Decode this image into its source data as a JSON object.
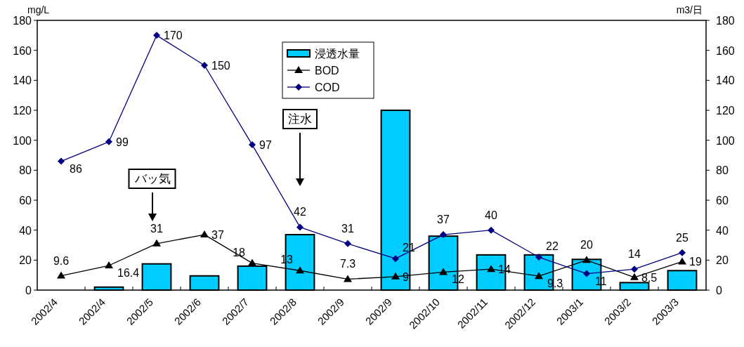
{
  "chart_data": {
    "type": "bar",
    "ylabel": "mg/L",
    "y2label": "m3/日",
    "categories": [
      "2002/4",
      "2002/4",
      "2002/5",
      "2002/6",
      "2002/7",
      "2002/8",
      "2002/9",
      "2002/9",
      "2002/10",
      "2002/11",
      "2002/12",
      "2003/1",
      "2003/2",
      "2003/3"
    ],
    "series": [
      {
        "name": "浸透水量",
        "color": "#00ccff",
        "values": [
          null,
          2,
          17.5,
          9.5,
          16,
          37,
          null,
          120,
          36,
          23.5,
          23.5,
          20.5,
          5,
          13
        ]
      },
      {
        "name": "BOD",
        "type": "line",
        "color": "#000000",
        "marker": "triangle",
        "values": [
          9.6,
          16.4,
          31,
          37,
          18,
          13,
          7.3,
          9,
          12,
          14,
          9.3,
          20,
          8.5,
          19
        ],
        "value_labels": [
          "9.6",
          "16.4",
          "31",
          "37",
          "18",
          "13",
          "7.3",
          "9",
          "12",
          "14",
          "9.3",
          "20",
          "8.5",
          "19"
        ]
      },
      {
        "name": "COD",
        "type": "line",
        "color": "#000080",
        "marker": "diamond",
        "values": [
          86,
          99,
          170,
          150,
          97,
          42,
          31,
          21,
          37,
          40,
          22,
          11,
          14,
          25
        ],
        "value_labels": [
          "86",
          "99",
          "170",
          "150",
          "97",
          "42",
          "31",
          "21",
          "37",
          "40",
          "22",
          "11",
          "14",
          "25"
        ]
      }
    ],
    "ylim": [
      0,
      180
    ],
    "yticks": [
      0,
      20,
      40,
      60,
      80,
      100,
      120,
      140,
      160,
      180
    ],
    "y2lim": [
      0,
      180
    ],
    "y2ticks": [
      0,
      20,
      40,
      60,
      80,
      100,
      120,
      140,
      160,
      180
    ],
    "legend": "top",
    "annotations": [
      "バッ気",
      "注水"
    ]
  }
}
